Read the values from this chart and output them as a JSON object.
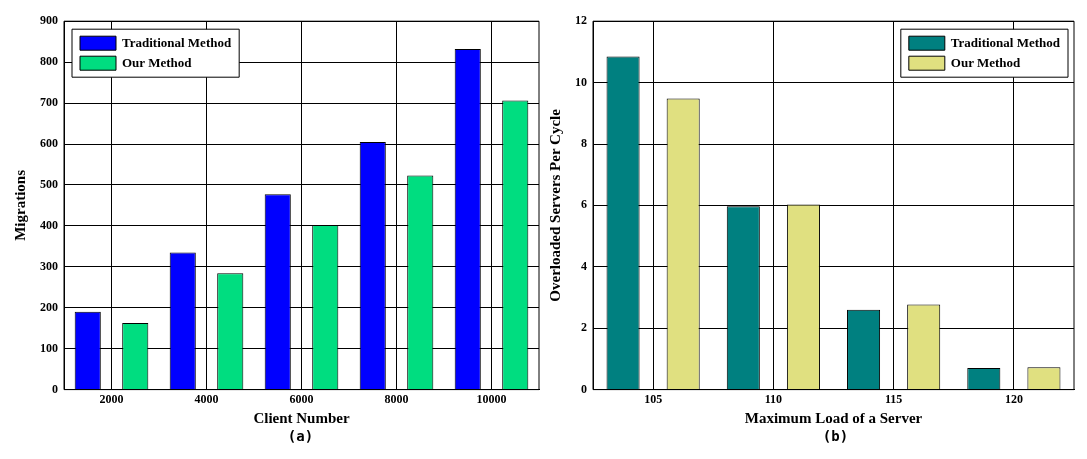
{
  "chart_data": [
    {
      "type": "bar",
      "xlabel": "Client Number",
      "ylabel": "Migrations",
      "annotations": [
        "(a)"
      ],
      "categories": [
        "2000",
        "4000",
        "6000",
        "8000",
        "10000"
      ],
      "series": [
        {
          "name": "Traditional Method",
          "color": "#0000ff",
          "values": [
            190,
            335,
            477,
            605,
            832
          ]
        },
        {
          "name": "Our Method",
          "color": "#00dd80",
          "values": [
            163,
            284,
            402,
            523,
            706
          ]
        }
      ],
      "ylim": [
        0,
        900
      ],
      "yticks": [
        0,
        100,
        200,
        300,
        400,
        500,
        600,
        700,
        800,
        900
      ],
      "grid": true,
      "legend": "top left"
    },
    {
      "type": "bar",
      "xlabel": "Maximum Load of a Server",
      "ylabel": "Overloaded Servers Per Cycle",
      "annotations": [
        "(b)"
      ],
      "categories": [
        "105",
        "110",
        "115",
        "120"
      ],
      "series": [
        {
          "name": "Traditional Method",
          "color": "#008080",
          "values": [
            10.85,
            5.97,
            2.6,
            0.7
          ]
        },
        {
          "name": "Our Method",
          "color": "#e0e080",
          "values": [
            9.48,
            6.03,
            2.77,
            0.73
          ]
        }
      ],
      "ylim": [
        0,
        12
      ],
      "yticks": [
        0,
        2,
        4,
        6,
        8,
        10,
        12
      ],
      "grid": true,
      "legend": "top right"
    }
  ]
}
